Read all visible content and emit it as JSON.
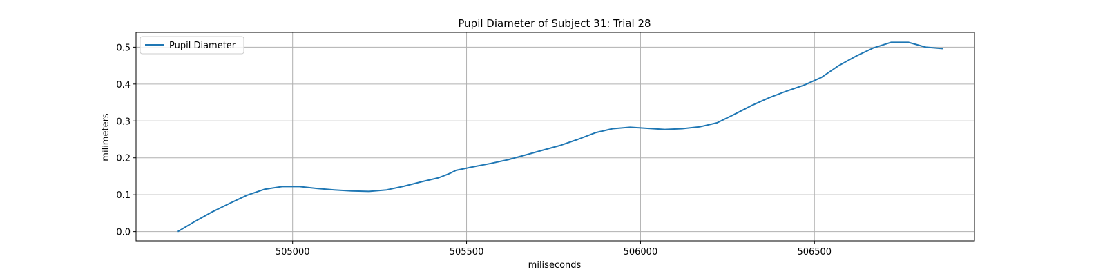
{
  "chart_data": {
    "type": "line",
    "title": "Pupil Diameter of Subject 31: Trial 28",
    "xlabel": "miliseconds",
    "ylabel": "milimeters",
    "xlim": [
      504550,
      506960
    ],
    "ylim": [
      -0.025,
      0.54
    ],
    "xticks": [
      505000,
      505500,
      506000,
      506500
    ],
    "yticks": [
      0.0,
      0.1,
      0.2,
      0.3,
      0.4,
      0.5
    ],
    "ytick_labels": [
      "0.0",
      "0.1",
      "0.2",
      "0.3",
      "0.4",
      "0.5"
    ],
    "grid": true,
    "legend_position": "upper-left",
    "series": [
      {
        "name": "Pupil Diameter",
        "color": "#1f77b4",
        "x": [
          504670,
          504720,
          504770,
          504820,
          504870,
          504920,
          504970,
          505020,
          505070,
          505120,
          505170,
          505220,
          505270,
          505320,
          505370,
          505420,
          505450,
          505470,
          505520,
          505570,
          505620,
          505670,
          505720,
          505770,
          505820,
          505870,
          505920,
          505970,
          506020,
          506070,
          506120,
          506170,
          506220,
          506270,
          506320,
          506370,
          506420,
          506470,
          506520,
          506570,
          506620,
          506670,
          506720,
          506770,
          506820,
          506870
        ],
        "y": [
          0.0,
          0.028,
          0.054,
          0.077,
          0.099,
          0.115,
          0.122,
          0.122,
          0.117,
          0.113,
          0.11,
          0.109,
          0.113,
          0.123,
          0.135,
          0.146,
          0.157,
          0.166,
          0.176,
          0.185,
          0.195,
          0.208,
          0.221,
          0.234,
          0.25,
          0.268,
          0.279,
          0.283,
          0.28,
          0.277,
          0.279,
          0.284,
          0.295,
          0.318,
          0.342,
          0.363,
          0.381,
          0.397,
          0.418,
          0.45,
          0.476,
          0.498,
          0.513,
          0.513,
          0.5,
          0.496
        ]
      }
    ]
  }
}
